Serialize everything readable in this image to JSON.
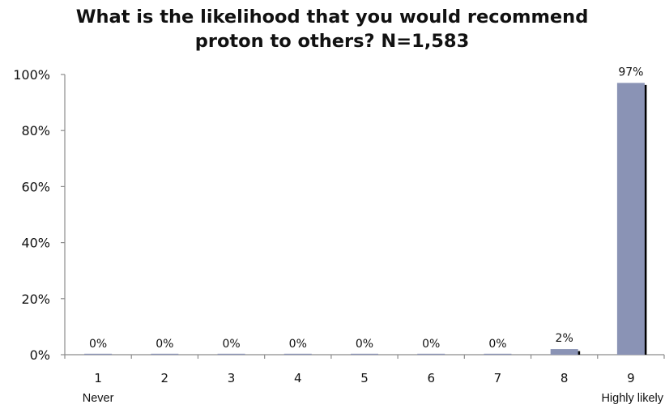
{
  "chart_data": {
    "type": "bar",
    "title_lines": [
      "What is the likelihood that you would recommend",
      "proton to others? N=1,583"
    ],
    "categories": [
      "1",
      "2",
      "3",
      "4",
      "5",
      "6",
      "7",
      "8",
      "9"
    ],
    "values": [
      0,
      0,
      0,
      0,
      0,
      0,
      0,
      2,
      97
    ],
    "value_labels": [
      "0%",
      "0%",
      "0%",
      "0%",
      "0%",
      "0%",
      "0%",
      "2%",
      "97%"
    ],
    "ylim": [
      0,
      100
    ],
    "yticks": [
      0,
      20,
      40,
      60,
      80,
      100
    ],
    "ytick_labels": [
      "0%",
      "20%",
      "40%",
      "60%",
      "80%",
      "100%"
    ],
    "x_end_labels": {
      "first": "Never",
      "last": "Highly likely"
    },
    "grid": false,
    "colors": {
      "bar": "#8a93b5",
      "bar_shadow": "#000000",
      "axis": "#8c8c8c",
      "text": "#111111"
    }
  }
}
